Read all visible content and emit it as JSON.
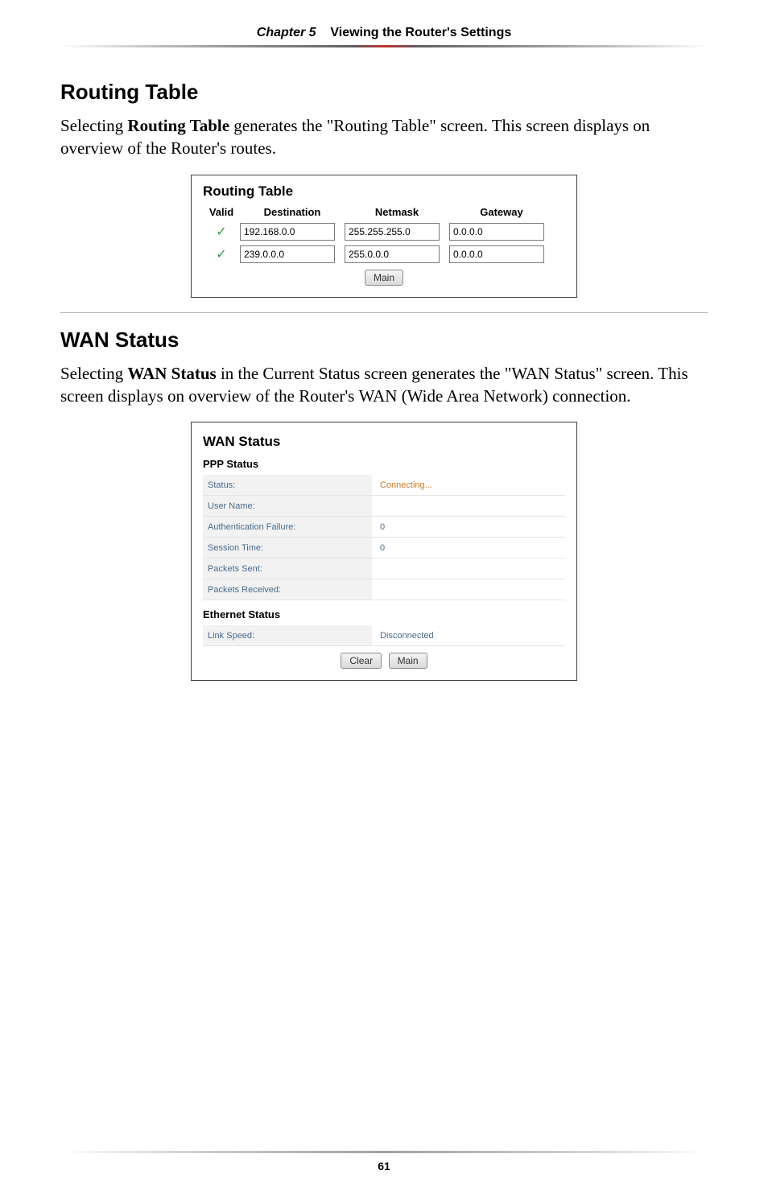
{
  "header": {
    "chapter_prefix": "Chapter 5",
    "chapter_title": "Viewing the Router's Settings"
  },
  "routing_section": {
    "heading": "Routing Table",
    "paragraph_pre": "Selecting ",
    "paragraph_bold": "Routing Table",
    "paragraph_post": " generates the \"Routing Table\" screen. This screen displays on overview of the Router's routes."
  },
  "routing_panel": {
    "title": "Routing Table",
    "columns": {
      "valid": "Valid",
      "destination": "Destination",
      "netmask": "Netmask",
      "gateway": "Gateway"
    },
    "rows": [
      {
        "valid": "✓",
        "destination": "192.168.0.0",
        "netmask": "255.255.255.0",
        "gateway": "0.0.0.0"
      },
      {
        "valid": "✓",
        "destination": "239.0.0.0",
        "netmask": "255.0.0.0",
        "gateway": "0.0.0.0"
      }
    ],
    "main_btn": "Main"
  },
  "wan_section": {
    "heading": "WAN Status",
    "para": {
      "t1": "Selecting ",
      "b1": "WAN Status",
      "t2": " in the Current Status screen generates the \"",
      "sc1": "WAN",
      "t3": " Status\" screen. This screen displays on overview of the Router's ",
      "sc2": "WAN",
      "t4": " (Wide Area Network) connection."
    }
  },
  "wan_panel": {
    "title": "WAN Status",
    "ppp_heading": "PPP Status",
    "ppp_rows": [
      {
        "label": "Status:",
        "value": "Connecting...",
        "orange": true
      },
      {
        "label": "User Name:",
        "value": ""
      },
      {
        "label": "Authentication Failure:",
        "value": "0"
      },
      {
        "label": "Session Time:",
        "value": "0"
      },
      {
        "label": "Packets Sent:",
        "value": ""
      },
      {
        "label": "Packets Received:",
        "value": ""
      }
    ],
    "eth_heading": "Ethernet Status",
    "eth_rows": [
      {
        "label": "Link Speed:",
        "value": "Disconnected"
      }
    ],
    "clear_btn": "Clear",
    "main_btn": "Main"
  },
  "footer": {
    "page_number": "61"
  }
}
